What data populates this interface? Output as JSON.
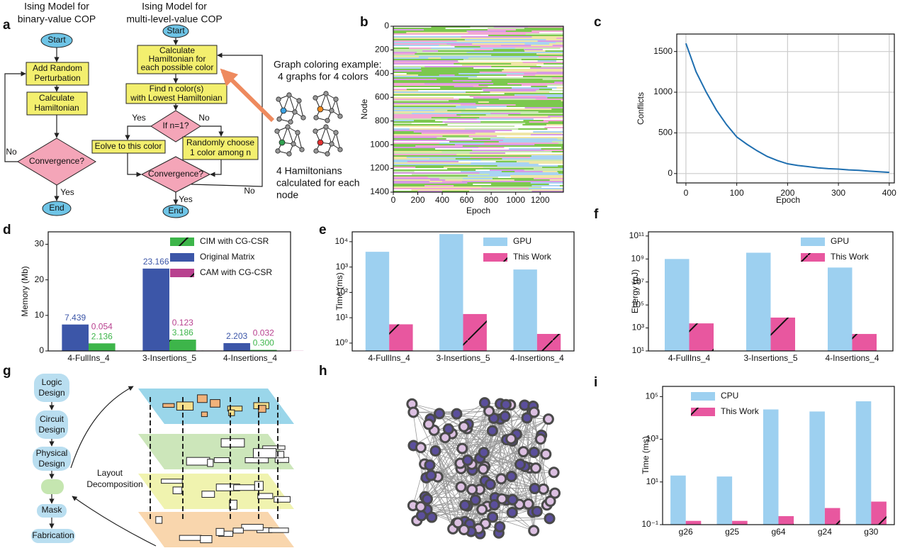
{
  "panel_labels": [
    "a",
    "b",
    "c",
    "d",
    "e",
    "f",
    "g",
    "h",
    "i"
  ],
  "flowchart_binary": {
    "title": [
      "Ising Model for",
      "binary-value COP"
    ],
    "start": "Start",
    "perturb": [
      "Add Random",
      "Perturbation"
    ],
    "hamiltonian": [
      "Calculate",
      "Hamiltonian"
    ],
    "convergence": "Convergence?",
    "end": "End",
    "no": "No",
    "yes": "Yes"
  },
  "flowchart_multi": {
    "title": [
      "Ising Model for",
      "multi-level-value COP"
    ],
    "start": "Start",
    "calc": [
      "Calculate",
      "Hamiltonian for",
      "each possible color"
    ],
    "find": [
      "Find n color(s)",
      "with Lowest Hamiltonian"
    ],
    "decision": "If n=1?",
    "yes1": "Yes",
    "no1": "No",
    "evolve": "Eolve to this color",
    "random": [
      "Randomly choose",
      "1 color among n"
    ],
    "convergence": "Convergence?",
    "yes2": "Yes",
    "no2": "No",
    "end": "End"
  },
  "example": {
    "caption": [
      "Graph coloring example:",
      "4 graphs  for 4 colors"
    ],
    "note": [
      "4 Hamiltonians",
      "calculated for each",
      "node"
    ]
  },
  "flow_design": {
    "steps": [
      [
        "Logic",
        "Design"
      ],
      [
        "Circuit",
        "Design"
      ],
      [
        "Physical",
        "Design"
      ],
      [
        "Mask"
      ],
      [
        "Fabrication"
      ]
    ],
    "arrow_label": [
      "Layout",
      "Decomposition"
    ]
  },
  "chart_data": [
    {
      "type": "heatmap",
      "x_label": "Epoch",
      "y_label": "Node",
      "xlim": [
        0,
        1390
      ],
      "xticks": [
        0,
        200,
        400,
        600,
        800,
        1000,
        1200
      ],
      "ylim": [
        1400,
        0
      ],
      "yticks": [
        0,
        200,
        400,
        600,
        800,
        1000,
        1200,
        1400
      ]
    },
    {
      "type": "line",
      "x_label": "Epoch",
      "y_label": "Conflicts",
      "color": "#1f6fb0",
      "x": [
        0,
        20,
        40,
        60,
        80,
        100,
        120,
        140,
        160,
        180,
        200,
        220,
        240,
        260,
        280,
        300,
        320,
        340,
        360,
        380,
        400
      ],
      "values": [
        1600,
        1250,
        1000,
        780,
        600,
        450,
        360,
        280,
        210,
        160,
        120,
        100,
        85,
        70,
        60,
        55,
        45,
        40,
        30,
        22,
        15
      ],
      "xlim": [
        -18,
        410
      ],
      "xticks": [
        0,
        100,
        200,
        300,
        400
      ],
      "ylim": [
        -115,
        1715
      ],
      "yticks": [
        0,
        500,
        1000,
        1500
      ],
      "grid": true
    },
    {
      "type": "bar",
      "y_label": "Memory (Mb)",
      "categories": [
        "4-FullIns_4",
        "3-Insertions_5",
        "4-Insertions_4"
      ],
      "series": [
        {
          "name": "CIM with CG-CSR",
          "color": "#3db54a",
          "hatch": true,
          "values": [
            2.136,
            3.186,
            0.3
          ],
          "value_labels": [
            "2.136",
            "3.186",
            "0.300"
          ]
        },
        {
          "name": "Original Matrix",
          "color": "#3c56a8",
          "hatch": false,
          "values": [
            7.439,
            23.166,
            2.203
          ],
          "value_labels": [
            "7.439",
            "23.166",
            "2.203"
          ]
        },
        {
          "name": "CAM with CG-CSR",
          "color": "#b8418f",
          "hatch": true,
          "values": [
            0.054,
            0.123,
            0.032
          ],
          "value_labels": [
            "0.054",
            "0.123",
            "0.032"
          ]
        }
      ],
      "ylim": [
        0,
        33.5
      ],
      "yticks": [
        0,
        10,
        20,
        30
      ],
      "legend": "upper right"
    },
    {
      "type": "bar",
      "y_label": "Time (ms)",
      "log_y": true,
      "categories": [
        "4-FullIns_4",
        "3-Insertions_5",
        "4-Insertions_4"
      ],
      "series": [
        {
          "name": "GPU",
          "color": "#9dd0f0",
          "hatch": false,
          "values": [
            4000,
            20000,
            800
          ]
        },
        {
          "name": "This Work",
          "color": "#e8579f",
          "hatch": true,
          "values": [
            5.5,
            14,
            2.3
          ]
        }
      ],
      "ylim": [
        0.49,
        24500
      ],
      "yticks": [
        {
          "value": 1,
          "label": "10⁰"
        },
        {
          "value": 10,
          "label": "10¹"
        },
        {
          "value": 100,
          "label": "10²"
        },
        {
          "value": 1000,
          "label": "10³"
        },
        {
          "value": 10000,
          "label": "10⁴"
        }
      ],
      "legend": "upper right"
    },
    {
      "type": "bar",
      "y_label": "Energy (μJ)",
      "log_y": true,
      "categories": [
        "4-FullIns_4",
        "3-Insertions_5",
        "4-Insertions_4"
      ],
      "series": [
        {
          "name": "GPU",
          "color": "#9dd0f0",
          "hatch": false,
          "values": [
            1000000000,
            3500000000,
            180000000
          ]
        },
        {
          "name": "This Work",
          "color": "#e8579f",
          "hatch": true,
          "values": [
            2500,
            8000,
            300
          ]
        }
      ],
      "ylim": [
        10,
        230000000000
      ],
      "yticks": [
        {
          "value": 10,
          "label": "10¹"
        },
        {
          "value": 1000,
          "label": "10³"
        },
        {
          "value": 100000,
          "label": "10⁵"
        },
        {
          "value": 10000000,
          "label": "10⁷"
        },
        {
          "value": 1000000000,
          "label": "10⁹"
        },
        {
          "value": 100000000000,
          "label": "10¹¹"
        }
      ],
      "legend": "upper right"
    },
    {
      "type": "bar",
      "y_label": "Time (ms)",
      "log_y": true,
      "categories": [
        "g26",
        "g25",
        "g64",
        "g24",
        "g30"
      ],
      "series": [
        {
          "name": "CPU",
          "color": "#9dd0f0",
          "hatch": false,
          "values": [
            20,
            18,
            25000,
            20000,
            60000
          ]
        },
        {
          "name": "This Work",
          "color": "#e8579f",
          "hatch": true,
          "values": [
            0.15,
            0.15,
            0.25,
            0.6,
            1.2
          ]
        }
      ],
      "ylim": [
        0.1,
        300000
      ],
      "yticks": [
        {
          "value": 0.1,
          "label": "10⁻¹"
        },
        {
          "value": 10,
          "label": "10¹"
        },
        {
          "value": 1000,
          "label": "10³"
        },
        {
          "value": 100000,
          "label": "10⁵"
        }
      ],
      "legend": "upper left"
    }
  ]
}
